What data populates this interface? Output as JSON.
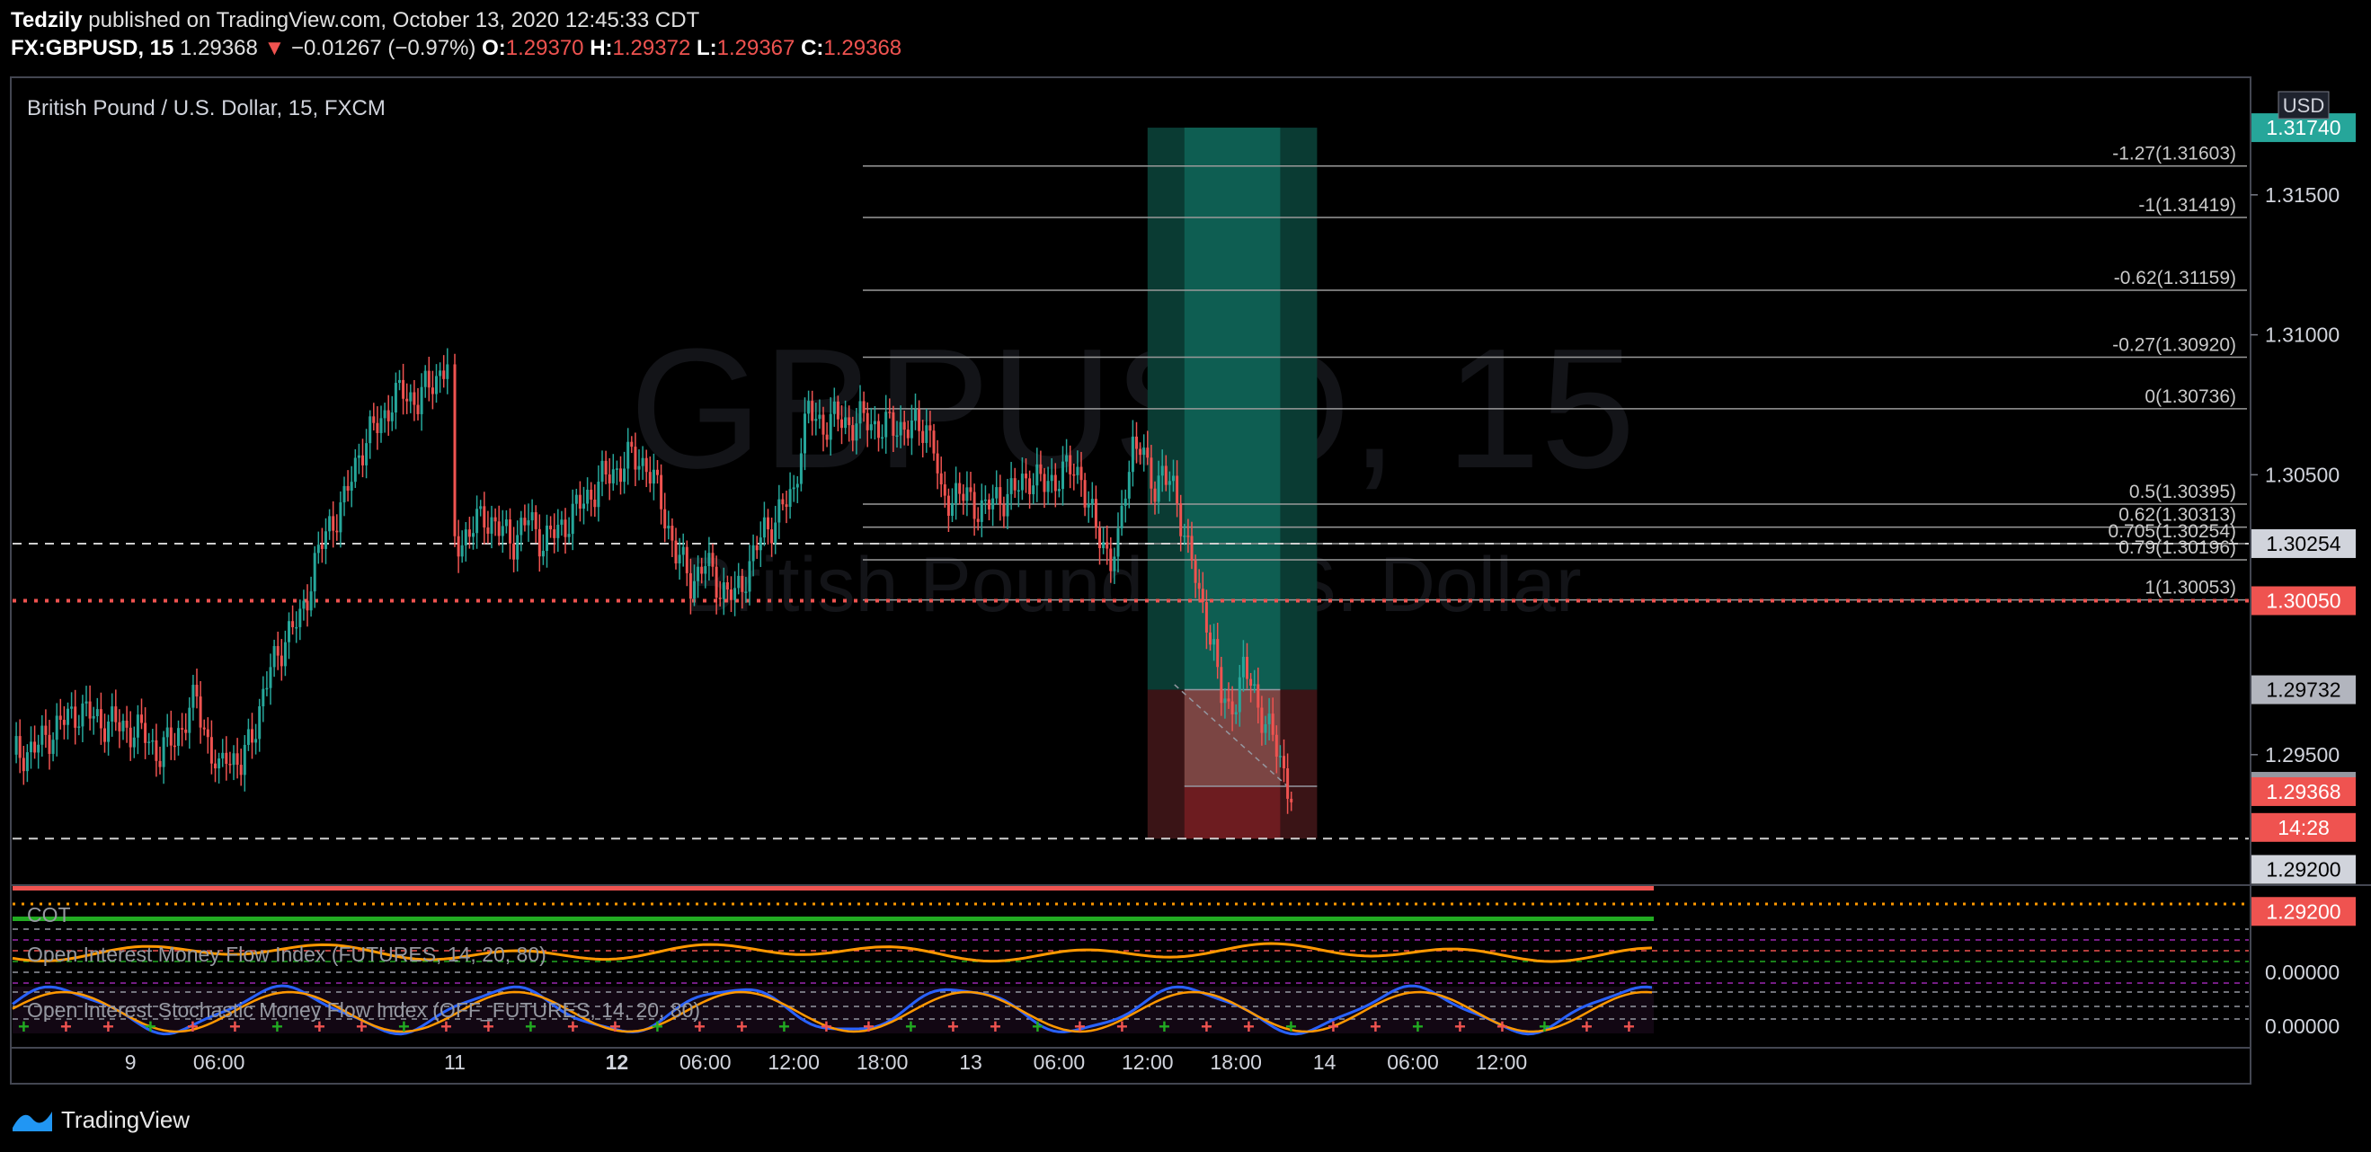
{
  "header": {
    "author": "Tedzily",
    "published": "published on TradingView.com, October 13, 2020 12:45:33 CDT",
    "symbol": "FX:GBPUSD, 15",
    "last": "1.29368",
    "arrow": "▼",
    "change": "−0.01267 (−0.97%)",
    "o_label": "O:",
    "o_value": "1.29370",
    "h_label": "H:",
    "h_value": "1.29372",
    "l_label": "L:",
    "l_value": "1.29367",
    "c_label": "C:",
    "c_value": "1.29368"
  },
  "chart_data": {
    "type": "candlestick",
    "title": "British Pound / U.S. Dollar, 15, FXCM",
    "watermark_symbol": "GBPUSD, 15",
    "watermark_name": "British Pound / U.S. Dollar",
    "currency": "USD",
    "ylim": [
      1.2905,
      1.3192
    ],
    "price_ticks": [
      "1.31500",
      "1.31000",
      "1.30500",
      "1.29500"
    ],
    "time_labels": [
      {
        "label": "9",
        "bold": false,
        "i": 32
      },
      {
        "label": "06:00",
        "bold": false,
        "i": 56
      },
      {
        "label": "11",
        "bold": false,
        "i": 120
      },
      {
        "label": "12",
        "bold": true,
        "i": 164
      },
      {
        "label": "06:00",
        "bold": false,
        "i": 188
      },
      {
        "label": "12:00",
        "bold": false,
        "i": 212
      },
      {
        "label": "18:00",
        "bold": false,
        "i": 236
      },
      {
        "label": "13",
        "bold": false,
        "i": 260
      },
      {
        "label": "06:00",
        "bold": false,
        "i": 284
      },
      {
        "label": "12:00",
        "bold": false,
        "i": 308
      },
      {
        "label": "18:00",
        "bold": false,
        "i": 332
      },
      {
        "label": "14",
        "bold": false,
        "i": 356
      },
      {
        "label": "06:00",
        "bold": false,
        "i": 380
      },
      {
        "label": "12:00",
        "bold": false,
        "i": 404
      }
    ],
    "close_path": [
      [
        0,
        1.295
      ],
      [
        6,
        1.2952
      ],
      [
        12,
        1.296
      ],
      [
        18,
        1.2966
      ],
      [
        24,
        1.2962
      ],
      [
        30,
        1.296
      ],
      [
        36,
        1.2957
      ],
      [
        40,
        1.295
      ],
      [
        46,
        1.296
      ],
      [
        50,
        1.297
      ],
      [
        54,
        1.295
      ],
      [
        56,
        1.2942
      ],
      [
        58,
        1.2952
      ],
      [
        62,
        1.2945
      ],
      [
        66,
        1.2962
      ],
      [
        70,
        1.298
      ],
      [
        74,
        1.2992
      ],
      [
        78,
        1.2998
      ],
      [
        82,
        1.3018
      ],
      [
        86,
        1.3032
      ],
      [
        90,
        1.304
      ],
      [
        94,
        1.3058
      ],
      [
        98,
        1.3066
      ],
      [
        102,
        1.3074
      ],
      [
        106,
        1.308
      ],
      [
        110,
        1.3076
      ],
      [
        114,
        1.3084
      ],
      [
        118,
        1.3089
      ],
      [
        120,
        1.3026
      ],
      [
        124,
        1.3029
      ],
      [
        128,
        1.3036
      ],
      [
        132,
        1.303
      ],
      [
        136,
        1.3027
      ],
      [
        140,
        1.3034
      ],
      [
        144,
        1.3026
      ],
      [
        148,
        1.303
      ],
      [
        152,
        1.3036
      ],
      [
        156,
        1.3042
      ],
      [
        160,
        1.3048
      ],
      [
        164,
        1.3052
      ],
      [
        168,
        1.3056
      ],
      [
        172,
        1.3054
      ],
      [
        176,
        1.304
      ],
      [
        180,
        1.3022
      ],
      [
        184,
        1.3012
      ],
      [
        188,
        1.3018
      ],
      [
        192,
        1.301
      ],
      [
        196,
        1.3006
      ],
      [
        200,
        1.3018
      ],
      [
        204,
        1.303
      ],
      [
        208,
        1.3036
      ],
      [
        212,
        1.3044
      ],
      [
        214,
        1.3062
      ],
      [
        216,
        1.3072
      ],
      [
        220,
        1.3068
      ],
      [
        224,
        1.307
      ],
      [
        228,
        1.3068
      ],
      [
        232,
        1.307
      ],
      [
        236,
        1.3066
      ],
      [
        240,
        1.3068
      ],
      [
        244,
        1.3066
      ],
      [
        248,
        1.3068
      ],
      [
        250,
        1.306
      ],
      [
        252,
        1.304
      ],
      [
        256,
        1.3044
      ],
      [
        260,
        1.304
      ],
      [
        264,
        1.3038
      ],
      [
        268,
        1.3042
      ],
      [
        272,
        1.3044
      ],
      [
        276,
        1.305
      ],
      [
        280,
        1.3046
      ],
      [
        284,
        1.305
      ],
      [
        288,
        1.3052
      ],
      [
        290,
        1.305
      ],
      [
        292,
        1.3038
      ],
      [
        294,
        1.303
      ],
      [
        296,
        1.3026
      ],
      [
        298,
        1.302
      ],
      [
        300,
        1.3024
      ],
      [
        302,
        1.3046
      ],
      [
        304,
        1.3062
      ],
      [
        306,
        1.306
      ],
      [
        308,
        1.305
      ],
      [
        310,
        1.3046
      ],
      [
        312,
        1.3052
      ],
      [
        314,
        1.3046
      ],
      [
        316,
        1.304
      ],
      [
        318,
        1.303
      ],
      [
        320,
        1.302
      ],
      [
        322,
        1.3004
      ],
      [
        324,
        1.3
      ],
      [
        326,
        1.2988
      ],
      [
        328,
        1.297
      ],
      [
        330,
        1.2965
      ],
      [
        332,
        1.2972
      ],
      [
        334,
        1.298
      ],
      [
        336,
        1.2975
      ],
      [
        338,
        1.2968
      ],
      [
        340,
        1.2962
      ],
      [
        342,
        1.2955
      ],
      [
        344,
        1.2948
      ],
      [
        346,
        1.294
      ],
      [
        347,
        1.29368
      ]
    ],
    "fib_levels": [
      {
        "label": "-1.27(1.31603)",
        "price": 1.31603
      },
      {
        "label": "-1(1.31419)",
        "price": 1.31419
      },
      {
        "label": "-0.62(1.31159)",
        "price": 1.31159
      },
      {
        "label": "-0.27(1.30920)",
        "price": 1.3092
      },
      {
        "label": "0(1.30736)",
        "price": 1.30736
      },
      {
        "label": "0.5(1.30395)",
        "price": 1.30395
      },
      {
        "label": "0.62(1.30313)",
        "price": 1.30313
      },
      {
        "label": "0.705(1.30254)",
        "price": 1.30254
      },
      {
        "label": "0.79(1.30196)",
        "price": 1.30196
      },
      {
        "label": "1(1.30053)",
        "price": 1.30053
      }
    ],
    "price_tags": [
      {
        "text": "1.31740",
        "price": 1.3174,
        "bg": "#26a69a",
        "fg": "#ffffff"
      },
      {
        "text": "1.30254",
        "price": 1.30254,
        "bg": "#d1d4dc",
        "fg": "#000000"
      },
      {
        "text": "1.30050",
        "price": 1.3005,
        "bg": "#ef5350",
        "fg": "#ffffff"
      },
      {
        "text": "1.29732",
        "price": 1.29732,
        "bg": "#b2b5be",
        "fg": "#000000"
      },
      {
        "text": "1.29387",
        "price": 1.29387,
        "bg": "#9598a1",
        "fg": "#000000"
      },
      {
        "text": "1.29368",
        "price": 1.29368,
        "bg": "#ef5350",
        "fg": "#ffffff"
      },
      {
        "text": "14:28",
        "price": 1.2924,
        "bg": "#ef5350",
        "fg": "#ffffff"
      },
      {
        "text": "1.29200",
        "price": 1.2909,
        "bg": "#d1d4dc",
        "fg": "#000000"
      },
      {
        "text": "1.29200",
        "price": 1.2894,
        "bg": "#ef5350",
        "fg": "#ffffff"
      }
    ],
    "position": {
      "entry": 1.29732,
      "target": 1.3174,
      "stop": 1.292,
      "current": 1.29387,
      "i_start": 308,
      "i_mid": 318,
      "i_mid2": 344,
      "i_end": 354
    },
    "indicators": [
      {
        "name": "COT",
        "value": "0"
      },
      {
        "name": "Open Interest Money Flow Index (FUTURES, 14, 20, 80)",
        "value": "0.00000"
      },
      {
        "name": "Open Interest Stochastic Money Flow Index (OFF_FUTURES, 14, 20, 80)",
        "value": "0.00000"
      }
    ]
  },
  "colors": {
    "up": "#26a69a",
    "down": "#ef5350",
    "grid": "#2a2e39"
  },
  "footer": {
    "brand": "TradingView"
  }
}
